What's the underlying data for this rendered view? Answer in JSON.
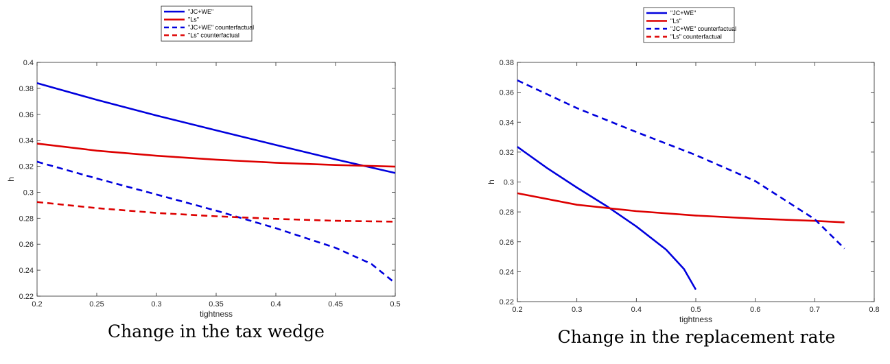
{
  "chart_data": [
    {
      "type": "line",
      "caption": "Change in the tax wedge",
      "xlabel": "tightness",
      "ylabel": "h",
      "xlim": [
        0.2,
        0.5
      ],
      "ylim": [
        0.22,
        0.4
      ],
      "xticks": [
        "0.2",
        "0.25",
        "0.3",
        "0.35",
        "0.4",
        "0.45",
        "0.5"
      ],
      "yticks": [
        "0.22",
        "0.24",
        "0.26",
        "0.28",
        "0.3",
        "0.32",
        "0.34",
        "0.36",
        "0.38",
        "0.4"
      ],
      "legend_position": "above plot, centered",
      "series": [
        {
          "name": "\"JC+WE\"",
          "color": "#0000dd",
          "dash": "solid",
          "x": [
            0.2,
            0.25,
            0.3,
            0.35,
            0.4,
            0.45,
            0.5
          ],
          "y": [
            0.384,
            0.3712,
            0.3591,
            0.3477,
            0.3364,
            0.3253,
            0.3148
          ]
        },
        {
          "name": "\"Ls\"",
          "color": "#dd0000",
          "dash": "solid",
          "x": [
            0.2,
            0.25,
            0.3,
            0.35,
            0.4,
            0.45,
            0.5
          ],
          "y": [
            0.3375,
            0.332,
            0.3281,
            0.3251,
            0.3227,
            0.321,
            0.3197
          ]
        },
        {
          "name": "\"JC+WE\" counterfactual",
          "color": "#0000dd",
          "dash": "dashed",
          "x": [
            0.2,
            0.25,
            0.3,
            0.35,
            0.4,
            0.45,
            0.48,
            0.5
          ],
          "y": [
            0.3235,
            0.3106,
            0.2983,
            0.2858,
            0.2723,
            0.2572,
            0.2448,
            0.23
          ]
        },
        {
          "name": "\"Ls\" counterfactual",
          "color": "#dd0000",
          "dash": "dashed",
          "x": [
            0.2,
            0.25,
            0.3,
            0.35,
            0.4,
            0.45,
            0.5
          ],
          "y": [
            0.2925,
            0.2878,
            0.2841,
            0.2815,
            0.2795,
            0.278,
            0.2773
          ]
        }
      ]
    },
    {
      "type": "line",
      "caption": "Change in the replacement rate",
      "xlabel": "tightness",
      "ylabel": "h",
      "xlim": [
        0.2,
        0.8
      ],
      "ylim": [
        0.22,
        0.38
      ],
      "xticks": [
        "0.2",
        "0.3",
        "0.4",
        "0.5",
        "0.6",
        "0.7",
        "0.8"
      ],
      "yticks": [
        "0.22",
        "0.24",
        "0.26",
        "0.28",
        "0.3",
        "0.32",
        "0.34",
        "0.36",
        "0.38"
      ],
      "legend_position": "above plot, centered",
      "series": [
        {
          "name": "\"JC+WE\"",
          "color": "#0000dd",
          "dash": "solid",
          "x": [
            0.2,
            0.25,
            0.3,
            0.35,
            0.4,
            0.45,
            0.48,
            0.5
          ],
          "y": [
            0.3235,
            0.3093,
            0.2963,
            0.2839,
            0.2703,
            0.2548,
            0.2418,
            0.228
          ]
        },
        {
          "name": "\"Ls\"",
          "color": "#dd0000",
          "dash": "solid",
          "x": [
            0.2,
            0.3,
            0.4,
            0.5,
            0.6,
            0.7,
            0.75
          ],
          "y": [
            0.2925,
            0.2848,
            0.2805,
            0.2776,
            0.2755,
            0.274,
            0.273
          ]
        },
        {
          "name": "\"JC+WE\" counterfactual",
          "color": "#0000dd",
          "dash": "dashed",
          "x": [
            0.2,
            0.3,
            0.4,
            0.5,
            0.6,
            0.7,
            0.75
          ],
          "y": [
            0.368,
            0.3494,
            0.3334,
            0.318,
            0.3006,
            0.2751,
            0.2555
          ]
        },
        {
          "name": "\"Ls\" counterfactual",
          "color": "#dd0000",
          "dash": "dashed",
          "x": [],
          "y": []
        }
      ]
    }
  ]
}
